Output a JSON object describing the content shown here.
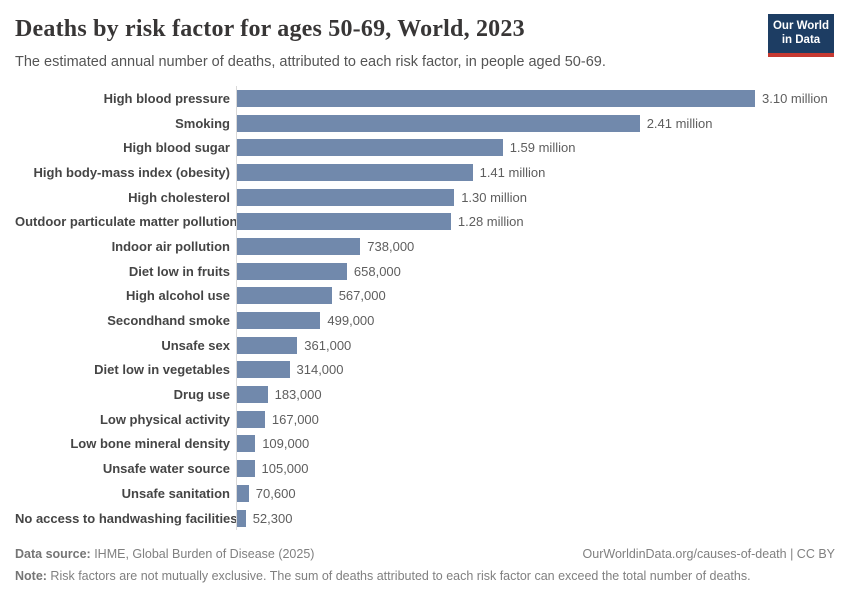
{
  "header": {
    "title": "Deaths by risk factor for ages 50-69, World, 2023",
    "subtitle": "The estimated annual number of deaths, attributed to each risk factor, in people aged 50-69."
  },
  "logo": {
    "line1": "Our World",
    "line2": "in Data",
    "background_color": "#1d3d63",
    "stripe_color": "#c63931"
  },
  "chart_data": {
    "type": "bar",
    "orientation": "horizontal",
    "title": "Deaths by risk factor for ages 50-69, World, 2023",
    "xlabel": "",
    "ylabel": "",
    "xlim": [
      0,
      3100000
    ],
    "grid": false,
    "legend": false,
    "bar_color": "#7189ac",
    "axis_line_color": "#d9d9d9",
    "categories": [
      "High blood pressure",
      "Smoking",
      "High blood sugar",
      "High body-mass index (obesity)",
      "High cholesterol",
      "Outdoor particulate matter pollution",
      "Indoor air pollution",
      "Diet low in fruits",
      "High alcohol use",
      "Secondhand smoke",
      "Unsafe sex",
      "Diet low in vegetables",
      "Drug use",
      "Low physical activity",
      "Low bone mineral density",
      "Unsafe water source",
      "Unsafe sanitation",
      "No access to handwashing facilities"
    ],
    "values": [
      3100000,
      2410000,
      1590000,
      1410000,
      1300000,
      1280000,
      738000,
      658000,
      567000,
      499000,
      361000,
      314000,
      183000,
      167000,
      109000,
      105000,
      70600,
      52300
    ],
    "value_labels": [
      "3.10 million",
      "2.41 million",
      "1.59 million",
      "1.41 million",
      "1.30 million",
      "1.28 million",
      "738,000",
      "658,000",
      "567,000",
      "499,000",
      "361,000",
      "314,000",
      "183,000",
      "167,000",
      "109,000",
      "105,000",
      "70,600",
      "52,300"
    ]
  },
  "footer": {
    "datasource_label": "Data source:",
    "datasource_text": " IHME, Global Burden of Disease (2025)",
    "source_link": "OurWorldinData.org/causes-of-death",
    "license": " | CC BY",
    "note_label": "Note:",
    "note_text": " Risk factors are not mutually exclusive. The sum of deaths attributed to each risk factor can exceed the total number of deaths."
  }
}
